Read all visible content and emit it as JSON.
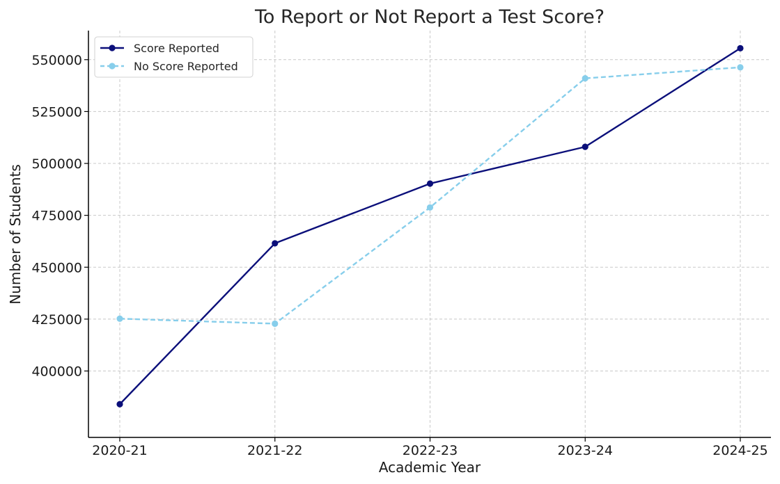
{
  "chart_data": {
    "type": "line",
    "title": "To Report or Not Report a Test Score?",
    "xlabel": "Academic Year",
    "ylabel": "Number of Students",
    "categories": [
      "2020-21",
      "2021-22",
      "2022-23",
      "2023-24",
      "2024-25"
    ],
    "ylim": [
      368000,
      564000
    ],
    "yticks": [
      400000,
      425000,
      450000,
      475000,
      500000,
      525000,
      550000
    ],
    "ytick_labels": [
      "400000",
      "425000",
      "450000",
      "475000",
      "500000",
      "525000",
      "550000"
    ],
    "grid": true,
    "legend_position": "top-left",
    "series": [
      {
        "name": "Score Reported",
        "values": [
          384000,
          461500,
          490300,
          508000,
          555500
        ],
        "color": "#0b0f7a",
        "line_style": "solid",
        "marker": "circle"
      },
      {
        "name": "No Score Reported",
        "values": [
          425200,
          422800,
          478800,
          541000,
          546300
        ],
        "color": "#87ceeb",
        "line_style": "dashed",
        "marker": "circle"
      }
    ]
  }
}
